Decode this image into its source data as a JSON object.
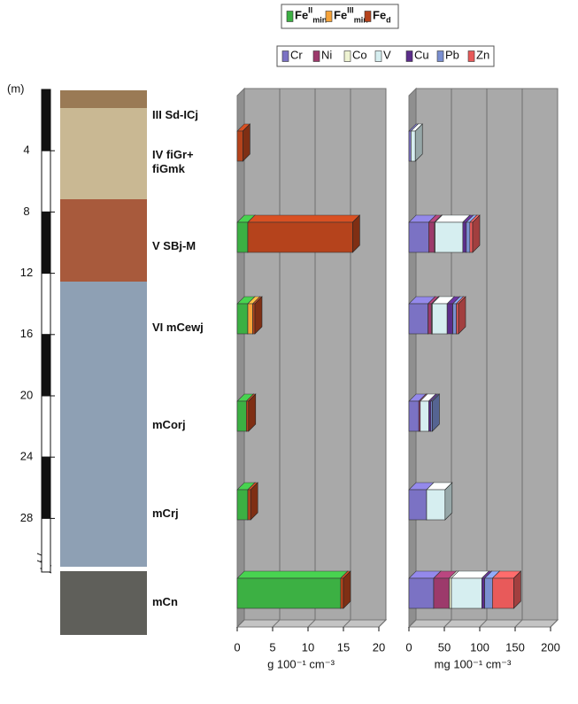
{
  "chart_data": [
    {
      "type": "depth-scale",
      "label": "(m)",
      "ylim": [
        0,
        31.5
      ],
      "yticks": [
        4,
        8,
        12,
        16,
        20,
        24,
        28
      ]
    },
    {
      "type": "bar3d",
      "categories": [
        "III Sd-ICj",
        "IV fiGr+ fiGmk",
        "V SBj-M",
        "VI mCewj",
        "mCorj",
        "mCrj",
        "mCn"
      ],
      "series": [
        {
          "name": "Fe",
          "superscript": "II",
          "subscript": "min",
          "color": "#3cb043",
          "values": [
            null,
            null,
            1.5,
            1.5,
            1.3,
            1.5,
            14.6
          ]
        },
        {
          "name": "Fe",
          "superscript": "III",
          "subscript": "min",
          "color": "#f5a33a",
          "values": [
            null,
            null,
            null,
            0.7,
            null,
            null,
            null
          ]
        },
        {
          "name": "Fe",
          "subscript": "d",
          "color": "#b5431c",
          "values": [
            null,
            0.8,
            14.8,
            0.3,
            0.3,
            0.4,
            0.4
          ]
        }
      ],
      "xlim": [
        0,
        20
      ],
      "xticks": [
        0,
        5,
        10,
        15,
        20
      ],
      "xlabel": "g 100⁻¹ cm⁻³"
    },
    {
      "type": "bar3d",
      "series": [
        {
          "name": "Cr",
          "color": "#7b72c4",
          "values": [
            null,
            3,
            28,
            27,
            14,
            25,
            35
          ]
        },
        {
          "name": "Ni",
          "color": "#9c3a6b",
          "values": [
            null,
            null,
            8,
            5,
            2,
            null,
            22
          ]
        },
        {
          "name": "Co",
          "color": "#eef3d2",
          "values": [
            null,
            null,
            1,
            1,
            null,
            null,
            3
          ]
        },
        {
          "name": "V",
          "color": "#d6eef0",
          "values": [
            null,
            6,
            39,
            21,
            12,
            26,
            43
          ]
        },
        {
          "name": "Cu",
          "color": "#5b2d8a",
          "values": [
            null,
            null,
            5,
            8,
            3,
            null,
            4
          ]
        },
        {
          "name": "Pb",
          "color": "#7a8fd0",
          "values": [
            null,
            null,
            5,
            5,
            2,
            null,
            11
          ]
        },
        {
          "name": "Zn",
          "color": "#e85a5a",
          "values": [
            null,
            null,
            4,
            3,
            null,
            null,
            30
          ]
        }
      ],
      "xlim": [
        0,
        200
      ],
      "xticks": [
        0,
        50,
        100,
        150,
        200
      ],
      "xlabel": "mg 100⁻¹ cm⁻³"
    }
  ]
}
